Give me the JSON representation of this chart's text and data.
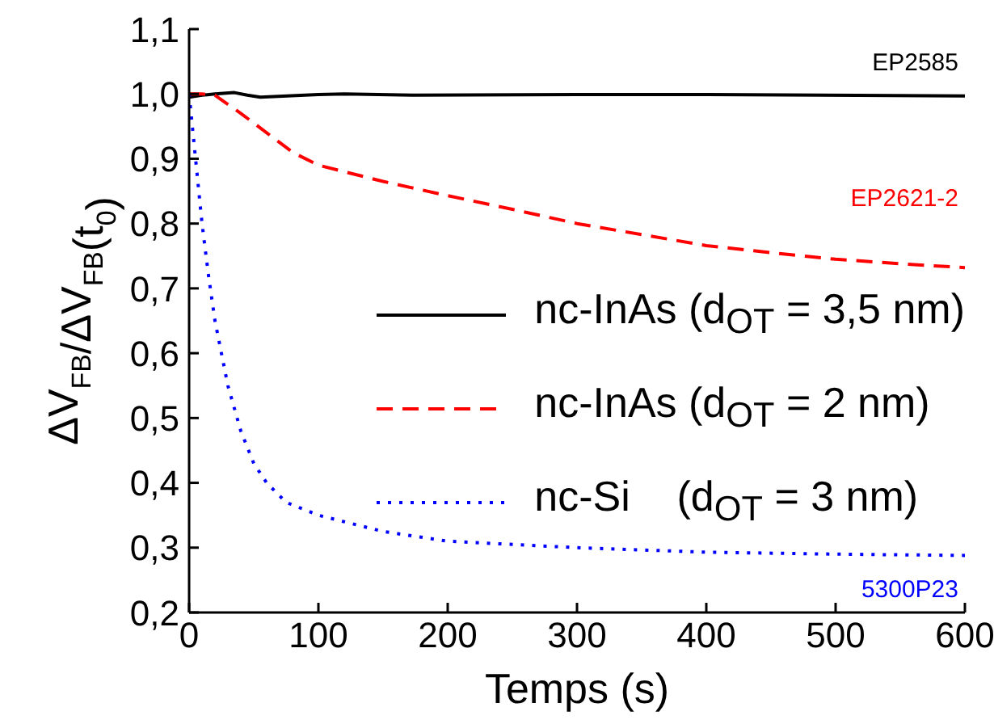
{
  "chart_data": {
    "type": "line",
    "xlabel": "Temps (s)",
    "ylabel": "ΔV$_{FB}$/ΔV$_{FB}$(t$_{0}$)",
    "xlim": [
      0,
      600
    ],
    "xticks": [
      0,
      100,
      200,
      300,
      400,
      500,
      600
    ],
    "ylim": [
      0.2,
      1.1
    ],
    "yticks": [
      {
        "value": 0.2,
        "label": "0,2"
      },
      {
        "value": 0.3,
        "label": "0,3"
      },
      {
        "value": 0.4,
        "label": "0,4"
      },
      {
        "value": 0.5,
        "label": "0,5"
      },
      {
        "value": 0.6,
        "label": "0,6"
      },
      {
        "value": 0.7,
        "label": "0,7"
      },
      {
        "value": 0.8,
        "label": "0,8"
      },
      {
        "value": 0.9,
        "label": "0,9"
      },
      {
        "value": 1.0,
        "label": "1,0"
      },
      {
        "value": 1.1,
        "label": "1,1"
      }
    ],
    "grid": false,
    "legend": "right",
    "marker": "none",
    "annotations": [
      "EP2585",
      "EP2621-2",
      "5300P23"
    ],
    "series": [
      {
        "name": "nc-InAs (d$_{OT}$ = 3,5 nm)",
        "color": "#000000",
        "line_style": "solid",
        "x": [
          0,
          10,
          20,
          35,
          45,
          55,
          100,
          120,
          175,
          300,
          400,
          600
        ],
        "values": [
          0.995,
          0.998,
          1.0,
          1.002,
          0.998,
          0.995,
          0.999,
          1.0,
          0.998,
          0.999,
          0.999,
          0.997
        ]
      },
      {
        "name": "nc-InAs (d$_{OT}$ = 2 nm)",
        "color": "#ff0000",
        "line_style": "dashed",
        "x": [
          0,
          10,
          20,
          40,
          60,
          80,
          100,
          150,
          200,
          250,
          300,
          350,
          400,
          450,
          500,
          550,
          600
        ],
        "values": [
          1.0,
          1.0,
          0.998,
          0.97,
          0.94,
          0.91,
          0.89,
          0.865,
          0.843,
          0.822,
          0.8,
          0.783,
          0.766,
          0.755,
          0.745,
          0.738,
          0.732
        ]
      },
      {
        "name": "nc-Si    (d$_{OT}$ = 3 nm)",
        "color": "#0000ff",
        "line_style": "dotted",
        "x": [
          0,
          2,
          5,
          10,
          15,
          20,
          30,
          40,
          50,
          60,
          75,
          100,
          150,
          200,
          300,
          400,
          500,
          600
        ],
        "values": [
          1.0,
          0.96,
          0.9,
          0.8,
          0.72,
          0.65,
          0.55,
          0.48,
          0.43,
          0.4,
          0.37,
          0.35,
          0.325,
          0.31,
          0.3,
          0.293,
          0.29,
          0.288
        ]
      }
    ]
  }
}
